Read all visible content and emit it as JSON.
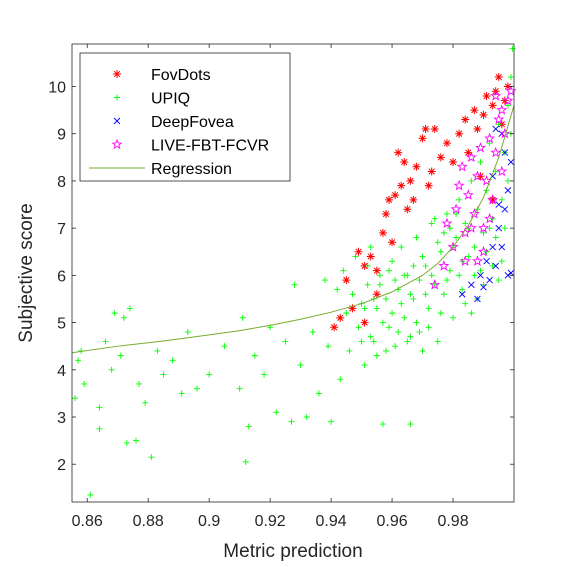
{
  "chart_data": {
    "type": "scatter",
    "title": "",
    "xlabel": "Metric prediction",
    "ylabel": "Subjective score",
    "xlim": [
      0.855,
      1.0
    ],
    "ylim": [
      1.2,
      10.9
    ],
    "xticks": [
      0.86,
      0.88,
      0.9,
      0.92,
      0.94,
      0.96,
      0.98
    ],
    "xtick_labels": [
      "0.86",
      "0.88",
      "0.9",
      "0.92",
      "0.94",
      "0.96",
      "0.98"
    ],
    "yticks": [
      2,
      3,
      4,
      5,
      6,
      7,
      8,
      9,
      10
    ],
    "ytick_labels": [
      "2",
      "3",
      "4",
      "5",
      "6",
      "7",
      "8",
      "9",
      "10"
    ],
    "grid": false,
    "legend_position": "top-left",
    "series": [
      {
        "name": "FovDots",
        "marker": "asterisk",
        "color": "#ff0000",
        "points": [
          [
            0.941,
            4.9
          ],
          [
            0.943,
            5.1
          ],
          [
            0.945,
            5.9
          ],
          [
            0.947,
            5.3
          ],
          [
            0.949,
            6.5
          ],
          [
            0.951,
            6.2
          ],
          [
            0.951,
            5.0
          ],
          [
            0.953,
            6.4
          ],
          [
            0.955,
            5.6
          ],
          [
            0.955,
            6.1
          ],
          [
            0.957,
            6.9
          ],
          [
            0.958,
            7.3
          ],
          [
            0.959,
            7.6
          ],
          [
            0.96,
            6.7
          ],
          [
            0.961,
            7.7
          ],
          [
            0.962,
            8.6
          ],
          [
            0.963,
            7.9
          ],
          [
            0.964,
            8.4
          ],
          [
            0.965,
            7.4
          ],
          [
            0.966,
            8.0
          ],
          [
            0.967,
            7.6
          ],
          [
            0.968,
            8.3
          ],
          [
            0.97,
            8.9
          ],
          [
            0.971,
            9.1
          ],
          [
            0.972,
            7.9
          ],
          [
            0.973,
            8.2
          ],
          [
            0.974,
            9.1
          ],
          [
            0.976,
            8.5
          ],
          [
            0.978,
            8.8
          ],
          [
            0.98,
            8.4
          ],
          [
            0.982,
            9.0
          ],
          [
            0.984,
            9.3
          ],
          [
            0.985,
            8.6
          ],
          [
            0.987,
            9.5
          ],
          [
            0.988,
            9.1
          ],
          [
            0.99,
            9.4
          ],
          [
            0.991,
            9.8
          ],
          [
            0.993,
            9.6
          ],
          [
            0.994,
            9.9
          ],
          [
            0.995,
            10.2
          ],
          [
            0.996,
            9.2
          ],
          [
            0.997,
            9.7
          ],
          [
            0.998,
            10.0
          ],
          [
            0.993,
            7.6
          ],
          [
            0.989,
            8.1
          ]
        ]
      },
      {
        "name": "UPIQ",
        "marker": "plus",
        "color": "#00ff00",
        "points": [
          [
            0.856,
            3.4
          ],
          [
            0.857,
            4.2
          ],
          [
            0.858,
            4.4
          ],
          [
            0.859,
            3.7
          ],
          [
            0.861,
            1.35
          ],
          [
            0.864,
            2.75
          ],
          [
            0.864,
            3.2
          ],
          [
            0.866,
            4.6
          ],
          [
            0.868,
            4.0
          ],
          [
            0.869,
            5.2
          ],
          [
            0.871,
            4.3
          ],
          [
            0.872,
            5.1
          ],
          [
            0.873,
            2.45
          ],
          [
            0.874,
            5.3
          ],
          [
            0.876,
            2.5
          ],
          [
            0.877,
            3.7
          ],
          [
            0.879,
            3.3
          ],
          [
            0.881,
            2.15
          ],
          [
            0.883,
            4.4
          ],
          [
            0.885,
            3.9
          ],
          [
            0.888,
            4.2
          ],
          [
            0.891,
            3.5
          ],
          [
            0.893,
            4.8
          ],
          [
            0.896,
            3.6
          ],
          [
            0.9,
            3.9
          ],
          [
            0.905,
            4.5
          ],
          [
            0.91,
            3.6
          ],
          [
            0.911,
            5.1
          ],
          [
            0.912,
            2.05
          ],
          [
            0.913,
            2.8
          ],
          [
            0.915,
            4.3
          ],
          [
            0.918,
            3.9
          ],
          [
            0.92,
            4.9
          ],
          [
            0.922,
            3.1
          ],
          [
            0.925,
            4.6
          ],
          [
            0.927,
            2.9
          ],
          [
            0.928,
            5.8
          ],
          [
            0.93,
            4.1
          ],
          [
            0.932,
            3.0
          ],
          [
            0.934,
            4.8
          ],
          [
            0.936,
            3.5
          ],
          [
            0.938,
            5.9
          ],
          [
            0.939,
            4.5
          ],
          [
            0.94,
            2.9
          ],
          [
            0.942,
            5.7
          ],
          [
            0.943,
            3.8
          ],
          [
            0.944,
            6.1
          ],
          [
            0.945,
            5.2
          ],
          [
            0.946,
            4.4
          ],
          [
            0.947,
            5.6
          ],
          [
            0.948,
            6.4
          ],
          [
            0.949,
            4.9
          ],
          [
            0.95,
            5.4
          ],
          [
            0.951,
            4.1
          ],
          [
            0.952,
            5.8
          ],
          [
            0.953,
            6.6
          ],
          [
            0.954,
            4.6
          ],
          [
            0.955,
            5.3
          ],
          [
            0.956,
            6.0
          ],
          [
            0.957,
            2.85
          ],
          [
            0.958,
            5.5
          ],
          [
            0.959,
            4.9
          ],
          [
            0.96,
            6.3
          ],
          [
            0.961,
            4.5
          ],
          [
            0.962,
            5.7
          ],
          [
            0.963,
            6.6
          ],
          [
            0.964,
            5.1
          ],
          [
            0.965,
            6.0
          ],
          [
            0.966,
            2.85
          ],
          [
            0.966,
            4.7
          ],
          [
            0.967,
            5.5
          ],
          [
            0.968,
            6.8
          ],
          [
            0.969,
            5.9
          ],
          [
            0.97,
            4.4
          ],
          [
            0.971,
            6.2
          ],
          [
            0.972,
            5.3
          ],
          [
            0.973,
            7.1
          ],
          [
            0.974,
            5.8
          ],
          [
            0.975,
            4.6
          ],
          [
            0.976,
            6.5
          ],
          [
            0.977,
            5.6
          ],
          [
            0.978,
            7.3
          ],
          [
            0.979,
            6.1
          ],
          [
            0.98,
            5.1
          ],
          [
            0.981,
            6.8
          ],
          [
            0.982,
            7.6
          ],
          [
            0.983,
            6.3
          ],
          [
            0.984,
            5.4
          ],
          [
            0.985,
            7.0
          ],
          [
            0.986,
            8.0
          ],
          [
            0.987,
            6.6
          ],
          [
            0.988,
            7.4
          ],
          [
            0.989,
            8.4
          ],
          [
            0.99,
            6.9
          ],
          [
            0.991,
            7.8
          ],
          [
            0.992,
            8.8
          ],
          [
            0.993,
            7.2
          ],
          [
            0.994,
            8.2
          ],
          [
            0.995,
            9.2
          ],
          [
            0.996,
            7.6
          ],
          [
            0.997,
            8.6
          ],
          [
            0.998,
            9.6
          ],
          [
            0.999,
            10.2
          ],
          [
            0.9995,
            10.8
          ],
          [
            0.999,
            9.0
          ],
          [
            0.998,
            8.0
          ],
          [
            0.997,
            7.0
          ],
          [
            0.996,
            6.3
          ],
          [
            0.995,
            5.9
          ],
          [
            0.994,
            6.8
          ],
          [
            0.993,
            6.2
          ],
          [
            0.992,
            7.0
          ],
          [
            0.991,
            6.5
          ],
          [
            0.99,
            5.8
          ],
          [
            0.989,
            6.1
          ],
          [
            0.988,
            5.5
          ],
          [
            0.987,
            6.0
          ],
          [
            0.986,
            5.2
          ],
          [
            0.985,
            6.4
          ],
          [
            0.984,
            7.1
          ],
          [
            0.983,
            5.7
          ],
          [
            0.982,
            6.0
          ],
          [
            0.981,
            7.3
          ],
          [
            0.98,
            6.6
          ],
          [
            0.979,
            7.0
          ],
          [
            0.978,
            5.9
          ],
          [
            0.977,
            6.9
          ],
          [
            0.976,
            5.2
          ],
          [
            0.975,
            6.7
          ],
          [
            0.974,
            7.2
          ],
          [
            0.973,
            6.0
          ],
          [
            0.972,
            4.9
          ],
          [
            0.971,
            5.6
          ],
          [
            0.97,
            6.4
          ],
          [
            0.969,
            4.8
          ],
          [
            0.968,
            5.0
          ],
          [
            0.967,
            6.2
          ],
          [
            0.966,
            5.6
          ],
          [
            0.965,
            4.6
          ],
          [
            0.964,
            6.0
          ],
          [
            0.963,
            5.4
          ],
          [
            0.962,
            4.8
          ],
          [
            0.961,
            5.9
          ],
          [
            0.96,
            5.2
          ],
          [
            0.959,
            6.1
          ],
          [
            0.958,
            4.4
          ],
          [
            0.957,
            5.0
          ],
          [
            0.956,
            5.8
          ],
          [
            0.955,
            4.3
          ],
          [
            0.954,
            5.5
          ],
          [
            0.953,
            4.7
          ],
          [
            0.952,
            6.2
          ],
          [
            0.951,
            5.3
          ],
          [
            0.95,
            4.6
          ]
        ]
      },
      {
        "name": "DeepFovea",
        "marker": "cross",
        "color": "#0000ff",
        "points": [
          [
            0.983,
            5.6
          ],
          [
            0.986,
            5.8
          ],
          [
            0.988,
            5.5
          ],
          [
            0.989,
            6.0
          ],
          [
            0.99,
            5.75
          ],
          [
            0.991,
            6.3
          ],
          [
            0.992,
            5.9
          ],
          [
            0.993,
            6.6
          ],
          [
            0.994,
            6.2
          ],
          [
            0.995,
            7.0
          ],
          [
            0.996,
            6.6
          ],
          [
            0.997,
            7.4
          ],
          [
            0.998,
            6.0
          ],
          [
            0.998,
            7.8
          ],
          [
            0.999,
            8.4
          ],
          [
            0.999,
            6.05
          ],
          [
            0.996,
            9.0
          ],
          [
            0.994,
            9.1
          ],
          [
            0.997,
            8.6
          ],
          [
            0.993,
            8.1
          ],
          [
            0.995,
            7.5
          ]
        ]
      },
      {
        "name": "LIVE-FBT-FCVR",
        "marker": "pentagram",
        "color": "#ff00ff",
        "points": [
          [
            0.974,
            5.8
          ],
          [
            0.977,
            6.2
          ],
          [
            0.978,
            7.1
          ],
          [
            0.98,
            6.6
          ],
          [
            0.981,
            7.4
          ],
          [
            0.982,
            7.9
          ],
          [
            0.983,
            8.3
          ],
          [
            0.984,
            6.9
          ],
          [
            0.985,
            7.7
          ],
          [
            0.986,
            8.5
          ],
          [
            0.987,
            7.3
          ],
          [
            0.988,
            8.1
          ],
          [
            0.989,
            8.7
          ],
          [
            0.99,
            7.0
          ],
          [
            0.991,
            8.0
          ],
          [
            0.992,
            8.9
          ],
          [
            0.993,
            7.6
          ],
          [
            0.994,
            8.6
          ],
          [
            0.995,
            9.3
          ],
          [
            0.996,
            8.2
          ],
          [
            0.997,
            9.0
          ],
          [
            0.998,
            9.7
          ],
          [
            0.999,
            9.9
          ],
          [
            0.996,
            9.5
          ],
          [
            0.994,
            9.8
          ],
          [
            0.992,
            7.2
          ],
          [
            0.99,
            6.5
          ],
          [
            0.988,
            6.3
          ],
          [
            0.986,
            7.0
          ],
          [
            0.984,
            6.3
          ]
        ]
      },
      {
        "name": "Regression",
        "marker": "line",
        "color": "#77ac30",
        "points": [
          [
            0.855,
            4.36
          ],
          [
            0.87,
            4.5
          ],
          [
            0.885,
            4.61
          ],
          [
            0.9,
            4.74
          ],
          [
            0.91,
            4.83
          ],
          [
            0.92,
            4.94
          ],
          [
            0.93,
            5.07
          ],
          [
            0.94,
            5.22
          ],
          [
            0.95,
            5.4
          ],
          [
            0.96,
            5.65
          ],
          [
            0.97,
            6.0
          ],
          [
            0.975,
            6.25
          ],
          [
            0.98,
            6.6
          ],
          [
            0.985,
            7.05
          ],
          [
            0.99,
            7.65
          ],
          [
            0.995,
            8.5
          ],
          [
            1.0,
            9.6
          ]
        ]
      }
    ]
  }
}
